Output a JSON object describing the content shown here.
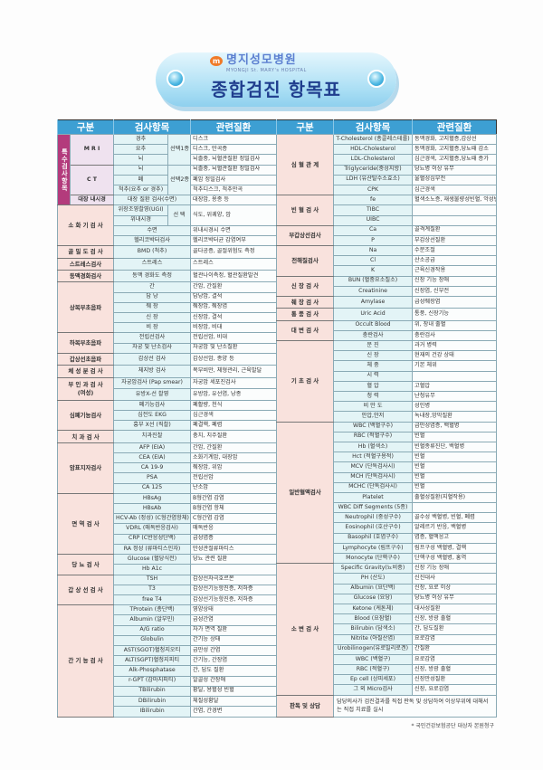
{
  "header": {
    "logo_mark": "m",
    "hospital_name": "명지성모병원",
    "hospital_name_en": "MYONGJI St. MARY's HOSPITAL",
    "title": "종합검진 항목표"
  },
  "columns": [
    "구분",
    "검사항목",
    "관련질환"
  ],
  "colors": {
    "header": "#3d9fd3",
    "category": "#f9e2dd",
    "special": "#b33b7c",
    "item": "#e3f4f6"
  },
  "left": {
    "special": {
      "label": "특수검사항목",
      "subgroups": [
        {
          "category": "M R I",
          "rows": [
            {
              "select": "선택1종",
              "items": [
                {
                  "item": "경추",
                  "disease": "디스크"
                },
                {
                  "item": "요추",
                  "disease": "디스크, 만곡증"
                },
                {
                  "item": "뇌",
                  "disease": "뇌졸중, 뇌혈관질환 정밀검사"
                }
              ]
            }
          ]
        },
        {
          "category": "C T",
          "rows": [
            {
              "select": "선택2종",
              "items": [
                {
                  "item": "뇌",
                  "disease": "뇌졸중, 뇌혈관질환 정밀검사"
                },
                {
                  "item": "폐",
                  "disease": "폐암 정밀검사"
                },
                {
                  "item": "척추(요추 or 경추)",
                  "disease": "척추디스크, 척추만곡"
                }
              ]
            }
          ]
        },
        {
          "category": "대장 내시경",
          "rows": [
            {
              "item": "대장 질환 검사(수면)",
              "disease": "대장암, 용종 등"
            }
          ]
        }
      ]
    },
    "groups": [
      {
        "category": "소 화 기 검 사",
        "rows": [
          {
            "select": "선 택",
            "disease": "식도, 위궤양, 암",
            "items": [
              {
                "item": "위장조영촬영(UGI)"
              },
              {
                "item": "위내시경"
              }
            ]
          },
          {
            "item": "수면",
            "disease": "위내시경시 수면"
          },
          {
            "item": "헬리코박터검사",
            "disease": "헬리코박터균 감염여부"
          }
        ]
      },
      {
        "category": "골 밀 도 검 사",
        "rows": [
          {
            "item": "BMD (척추)",
            "disease": "골다공증, 골절위험도 측정"
          }
        ]
      },
      {
        "category": "스트레스검사",
        "rows": [
          {
            "item": "스트레스",
            "disease": "스트레스"
          }
        ]
      },
      {
        "category": "동맥경화검사",
        "rows": [
          {
            "item": "동맥 경화도 측정",
            "disease": "혈관나이측정, 혈관질환발견"
          }
        ]
      },
      {
        "category": "상복부초음파",
        "rows": [
          {
            "item": "간",
            "disease": "간암, 간질환"
          },
          {
            "item": "담 낭",
            "disease": "담낭암, 결석"
          },
          {
            "item": "췌 장",
            "disease": "췌장암, 췌장염"
          },
          {
            "item": "신 장",
            "disease": "신장암, 결석"
          },
          {
            "item": "비 장",
            "disease": "비장암, 비대"
          }
        ]
      },
      {
        "category": "하복부초음파",
        "rows": [
          {
            "item": "전립선검사",
            "disease": "전립선암, 비대"
          },
          {
            "item": "자궁 및 난소검사",
            "disease": "자궁암 및 난소질환"
          }
        ]
      },
      {
        "category": "갑상선초음파",
        "rows": [
          {
            "item": "갑상선 검사",
            "disease": "갑상선암, 종양 등"
          }
        ]
      },
      {
        "category": "체 성 분 검 사",
        "rows": [
          {
            "item": "체지방 검사",
            "disease": "복부비만, 체형관리, 근육발달"
          }
        ]
      },
      {
        "category": "부 인 과 검 사\n(여성)",
        "rows": [
          {
            "item": "자궁암검사 (Pap smear)",
            "disease": "자궁암 세포진검사"
          },
          {
            "item": "유방X-선 촬영",
            "disease": "유방암, 유선염, 낭종"
          }
        ]
      },
      {
        "category": "심폐기능검사",
        "rows": [
          {
            "item": "폐기능검사",
            "disease": "폐활량, 천식"
          },
          {
            "item": "심전도 EKG",
            "disease": "심근경색"
          },
          {
            "item": "흉부 X선 (직촬)",
            "disease": "폐결핵, 폐렴"
          }
        ]
      },
      {
        "category": "치 과 검 사",
        "rows": [
          {
            "item": "치과진찰",
            "disease": "충치, 치주질환"
          }
        ]
      },
      {
        "category": "암표지자검사",
        "rows": [
          {
            "item": "AFP (EIA)",
            "disease": "간암, 간질환"
          },
          {
            "item": "CEA (EIA)",
            "disease": "소화기계암, 대장암"
          },
          {
            "item": "CA 19-9",
            "disease": "췌장암, 위암"
          },
          {
            "item": "PSA",
            "disease": "전립선암"
          },
          {
            "item": "CA 125",
            "disease": "난소암"
          }
        ]
      },
      {
        "category": "면 역 검 사",
        "rows": [
          {
            "item": "HBsAg",
            "disease": "B형간염 감염"
          },
          {
            "item": "HBsAb",
            "disease": "B형간염 항체"
          },
          {
            "item": "HCV-Ab (정성) (C형간염항체)",
            "disease": "C형간염 감염"
          },
          {
            "item": "VDRL (매독반응검사)",
            "disease": "매독반응"
          },
          {
            "item": "CRP (C반응성단백)",
            "disease": "급성염증"
          },
          {
            "item": "RA 정성 (류마티스인자)",
            "disease": "만성관절류마티스"
          }
        ]
      },
      {
        "category": "당 뇨 검 사",
        "rows": [
          {
            "item": "Glucose (혈당식전)",
            "disease": "당뇨 관련 질환"
          },
          {
            "item": "Hb A1c",
            "disease": ""
          }
        ]
      },
      {
        "category": "갑 상 선 검 사",
        "rows": [
          {
            "item": "TSH",
            "disease": "갑상선자극호르몬"
          },
          {
            "item": "T3",
            "disease": "갑상선기능항진증, 저하증"
          },
          {
            "item": "free T4",
            "disease": "갑상선기능항진증, 저하증"
          }
        ]
      },
      {
        "category": "간 기 능 검 사",
        "rows": [
          {
            "item": "TProtein (총단백)",
            "disease": "영양상태"
          },
          {
            "item": "Albumin (알부민)",
            "disease": "급성간염"
          },
          {
            "item": "A/G ratio",
            "disease": "자가 면역 질환"
          },
          {
            "item": "Globulin",
            "disease": "간기능 상태"
          },
          {
            "item": "AST(SGOT)혈청지오티",
            "disease": "급만성 간염"
          },
          {
            "item": "ALT(SGPT)혈청지피티",
            "disease": "간기능, 간장염"
          },
          {
            "item": "Alk-Phosphatase",
            "disease": "간, 담도 질환"
          },
          {
            "item": "r-GPT (감마지피티)",
            "disease": "알콜성 간장애"
          },
          {
            "item": "TBilirubin",
            "disease": "황달, 용혈성 빈혈"
          },
          {
            "item": "DBilirubin",
            "disease": "체질성황달"
          },
          {
            "item": "IBilirubin",
            "disease": "간염, 간경변"
          }
        ]
      }
    ]
  },
  "right": {
    "groups": [
      {
        "category": "심 혈 관 계",
        "rows": [
          {
            "item": "T-Cholesterol (총콜레스테롤)",
            "disease": "동맥경화, 고지혈증,갑상선"
          },
          {
            "item": "HDL-Cholesterol",
            "disease": "동맥경화, 고지혈증,당뇨때 감소"
          },
          {
            "item": "LDL-Cholesterol",
            "disease": "심근경색, 고지혈증,당뇨때 증가"
          },
          {
            "item": "Triglyceride(중성지방)",
            "disease": "당뇨병 이상 유무"
          },
          {
            "item": "LDH (유산탈수소효소)",
            "disease": "울혈성심부전"
          },
          {
            "item": "CPK",
            "disease": "심근경색"
          }
        ]
      },
      {
        "category": "빈 혈 검 사",
        "rows": [
          {
            "item": "fe",
            "disease": "혈색소노증, 재생불량성빈혈, 악성빈혈"
          },
          {
            "item": "TIBC",
            "disease": ""
          },
          {
            "item": "UIBC",
            "disease": ""
          }
        ]
      },
      {
        "category": "부갑상선검사",
        "rows": [
          {
            "item": "Ca",
            "disease": "골격계질환"
          },
          {
            "item": "P",
            "disease": "부갑상선질환"
          }
        ]
      },
      {
        "category": "전해질검사",
        "rows": [
          {
            "item": "Na",
            "disease": "수분조절"
          },
          {
            "item": "Cl",
            "disease": "산소공급"
          },
          {
            "item": "K",
            "disease": "근육신경작용"
          }
        ]
      },
      {
        "category": "신 장 검 사",
        "rows": [
          {
            "item": "BUN (혈중요소질소)",
            "disease": "신장 기능 장애"
          },
          {
            "item": "Creatinine",
            "disease": "신장염, 신부전"
          }
        ]
      },
      {
        "category": "췌 장 검 사",
        "rows": [
          {
            "item": "Amylase",
            "disease": "급성췌장염"
          }
        ]
      },
      {
        "category": "통 풍 검 사",
        "rows": [
          {
            "item": "Uric Acid",
            "disease": "통풍, 신장기능"
          }
        ]
      },
      {
        "category": "대 변 검 사",
        "rows": [
          {
            "item": "Occult Blood",
            "disease": "위, 장내 출혈"
          },
          {
            "item": "충란검사",
            "disease": "충란검사"
          }
        ]
      },
      {
        "category": "기 초 검 사",
        "rows": [
          {
            "item": "문 진",
            "disease": "과거 병력"
          },
          {
            "item": "신 장",
            "disease": "현재의 건강 상태"
          },
          {
            "item": "체 중",
            "disease": "기본 체위"
          },
          {
            "item": "시 력",
            "disease": ""
          },
          {
            "item": "혈 압",
            "disease": "고혈압"
          },
          {
            "item": "청 력",
            "disease": "난청유무"
          },
          {
            "item": "비 만 도",
            "disease": "성인병"
          },
          {
            "item": "안압,안저",
            "disease": "녹내장,망막질환"
          }
        ]
      },
      {
        "category": "일반혈액검사",
        "rows": [
          {
            "item": "WBC (백혈구수)",
            "disease": "급만성염증, 백혈병"
          },
          {
            "item": "RBC (적혈구수)",
            "disease": "빈혈"
          },
          {
            "item": "Hb (혈색소)",
            "disease": "빈혈종류진단, 백혈병"
          },
          {
            "item": "Hct (적혈구용적)",
            "disease": "빈혈"
          },
          {
            "item": "MCV (단독검사시)",
            "disease": "빈혈"
          },
          {
            "item": "MCH (단독검사시)",
            "disease": "빈혈"
          },
          {
            "item": "MCHC (단독검사시)",
            "disease": "빈혈"
          },
          {
            "item": "Platelet",
            "disease": "출혈성질환(지혈작용)"
          },
          {
            "item": "WBC Diff Segments (5종)",
            "disease": ""
          },
          {
            "item": "Neutrophil (중성구수)",
            "disease": "골수성 백혈병, 빈혈, 폐렴"
          },
          {
            "item": "Eosinophil (호산구수)",
            "disease": "알레르기 반응, 백혈병"
          },
          {
            "item": "Basophil (호염구수)",
            "disease": "염증, 혈액응고"
          },
          {
            "item": "Lymphocyte (림프구수)",
            "disease": "림프구성 백혈병, 결핵"
          },
          {
            "item": "Monocyte (단핵구수)",
            "disease": "단핵구성 백혈병, 홍역"
          }
        ]
      },
      {
        "category": "소 변 검 사",
        "rows": [
          {
            "item": "Specific Gravity(뇨비중)",
            "disease": "신장 기능 장애"
          },
          {
            "item": "PH (산도)",
            "disease": "신진대사"
          },
          {
            "item": "Albumin (요단백)",
            "disease": "신장, 요로 이상"
          },
          {
            "item": "Glucose (요당)",
            "disease": "당뇨병 이상 유무"
          },
          {
            "item": "Ketone (케톤체)",
            "disease": "대사성질환"
          },
          {
            "item": "Blood (요잠혈)",
            "disease": "신장, 방광 출혈"
          },
          {
            "item": "Bilirubin (담색소)",
            "disease": "간, 담도질환"
          },
          {
            "item": "Nitrite (아질산염)",
            "disease": "요로감염"
          },
          {
            "item": "Urobilinogen(유로빌리로겐)",
            "disease": "간질환"
          },
          {
            "item": "WBC (백혈구)",
            "disease": "요로감염"
          },
          {
            "item": "RBC (적혈구)",
            "disease": "신장, 방광 출혈"
          },
          {
            "item": "Ep cell (상피세포)",
            "disease": "신장만성질환"
          },
          {
            "item": "그 외 Micro검사",
            "disease": "신장, 요로감염"
          }
        ]
      },
      {
        "category": "판독 및 상담",
        "note": "담당의사가 검진결과를 직접 판독 및 상담하여 이상부위에 대해서는 직접 치료를 실시"
      }
    ]
  },
  "footnote": "* 국민건강보험공단 대상자 본원청구"
}
